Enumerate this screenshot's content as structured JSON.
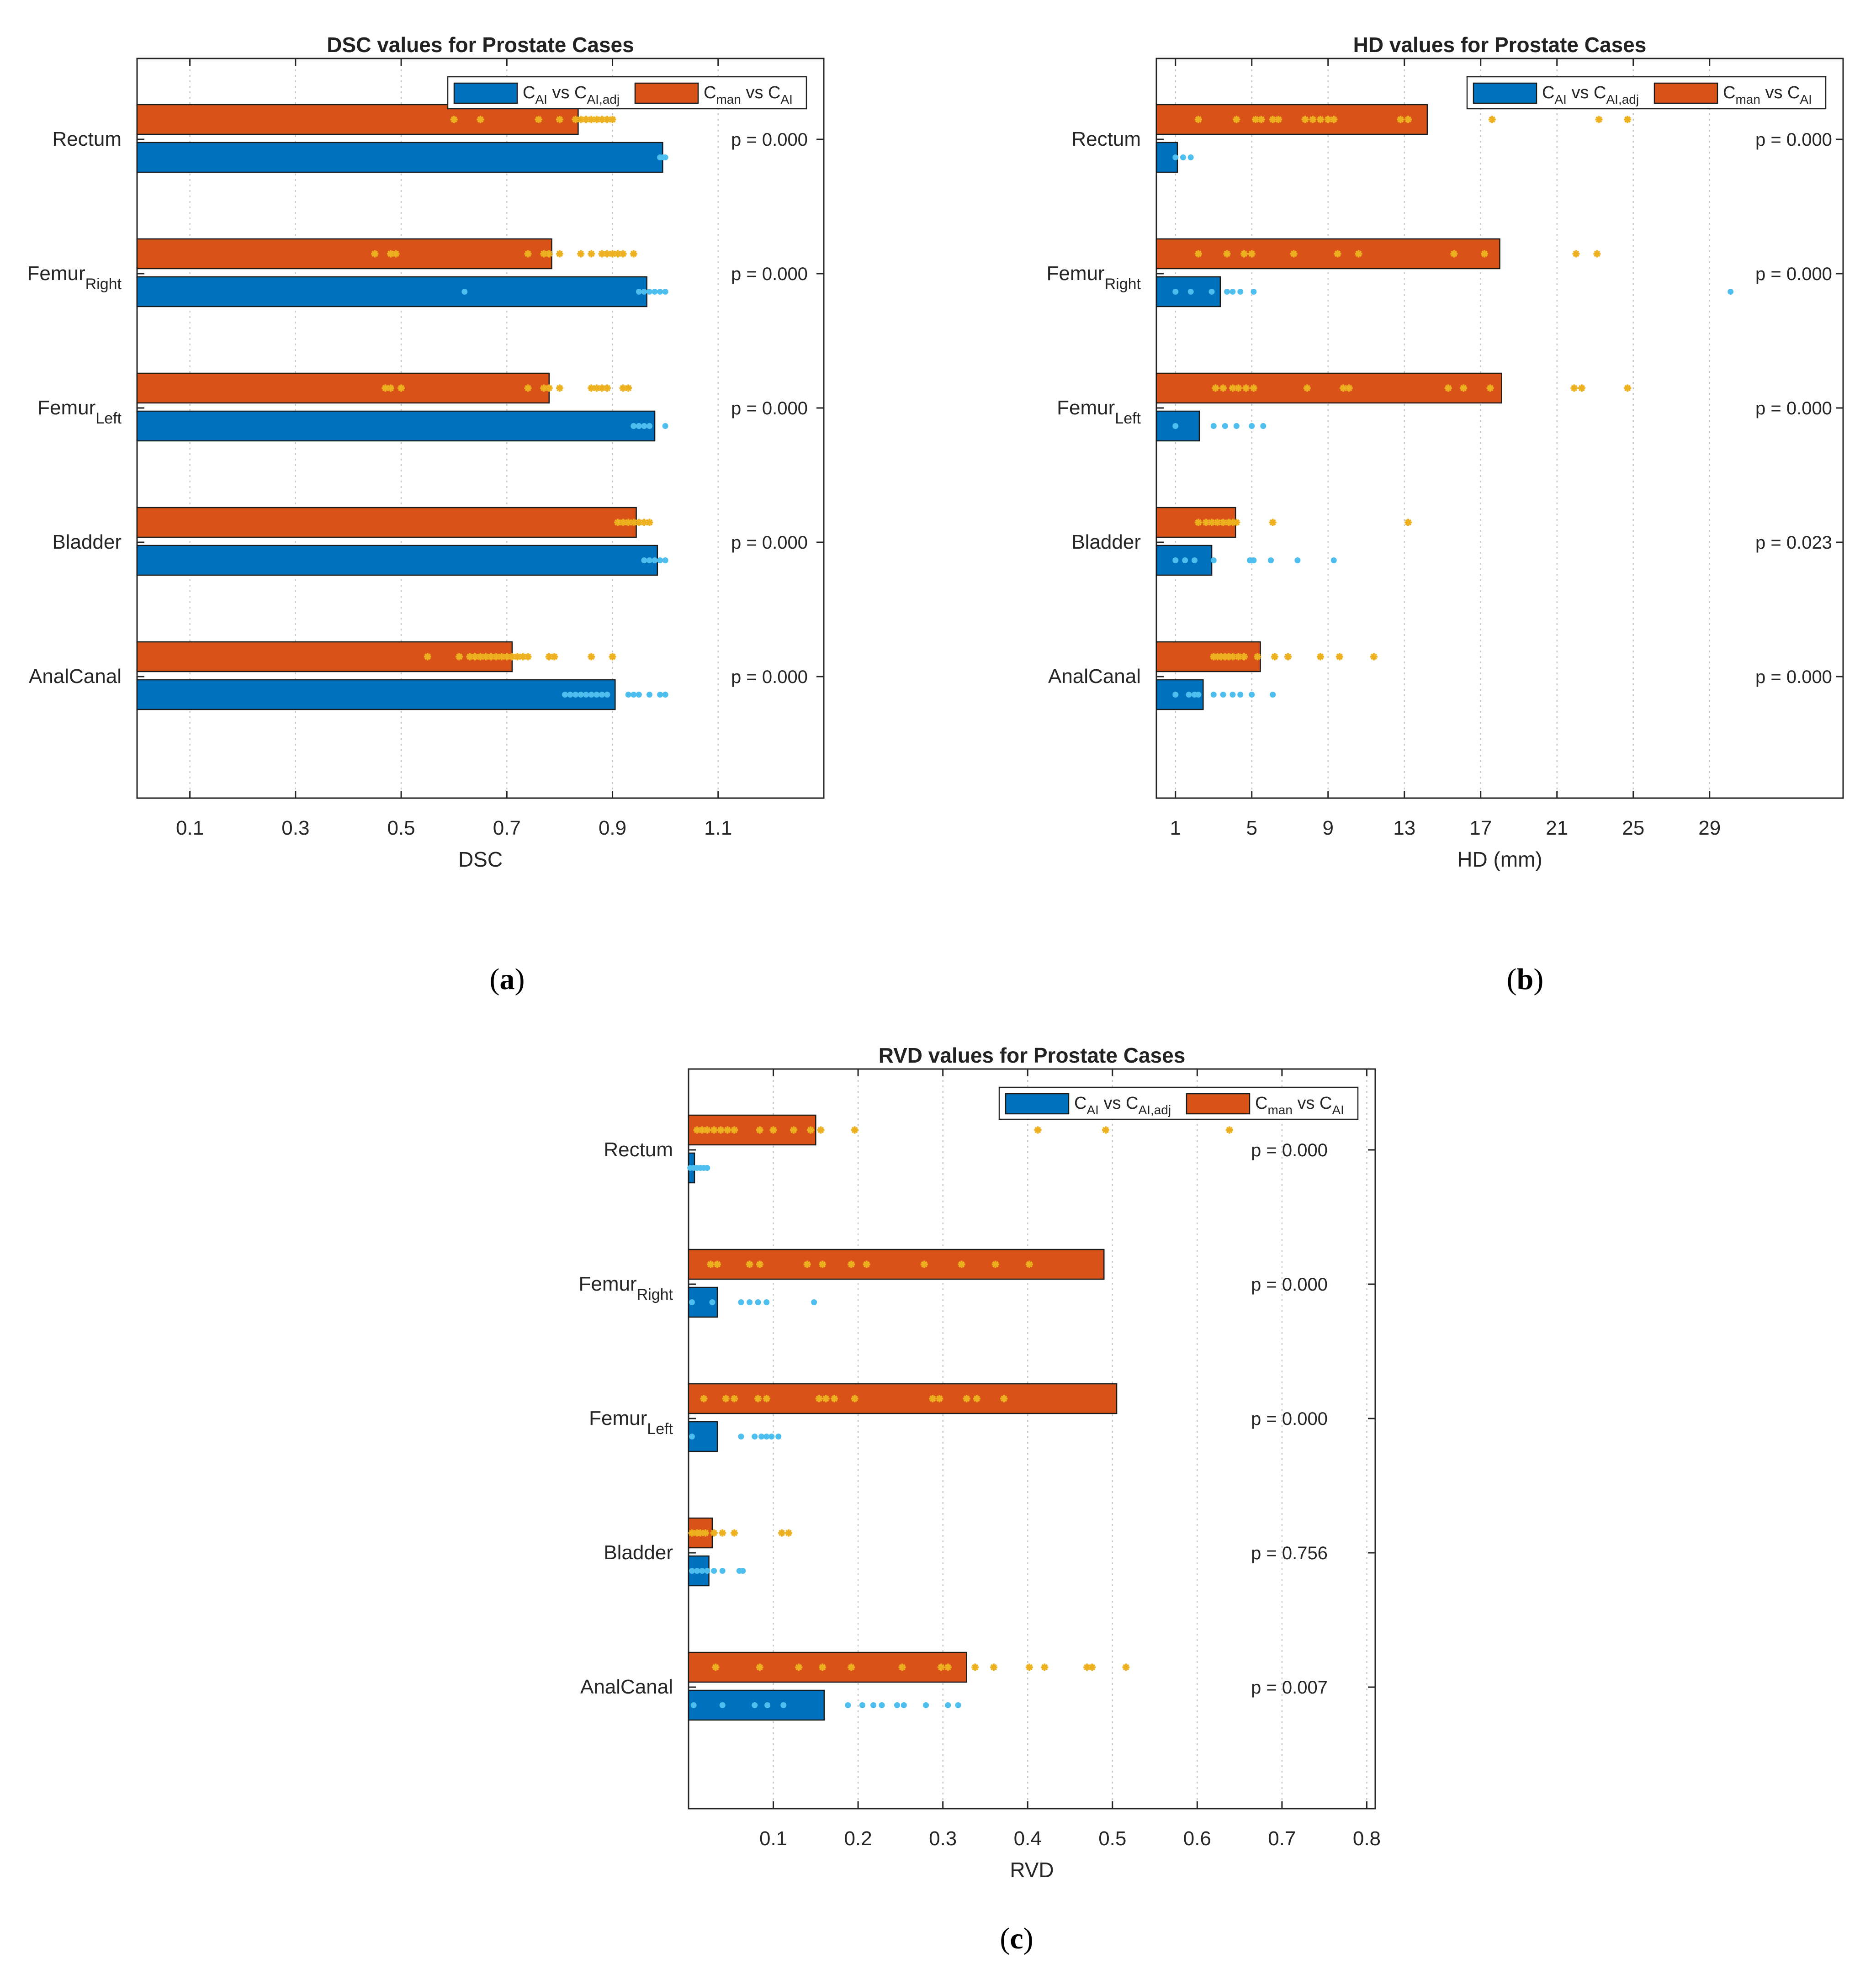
{
  "figure": {
    "panels": [
      "a",
      "b",
      "c"
    ]
  },
  "colors": {
    "blue_bar": "#0072BD",
    "orange_bar": "#D95319",
    "blue_dots": "#4DBEEE",
    "orange_stars": "#EDB120",
    "grid": "#c7c7c7",
    "axis": "#262626"
  },
  "chart_data": [
    {
      "type": "bar",
      "orientation": "horizontal",
      "title": "DSC values for Prostate Cases",
      "caption": "(a)",
      "xlabel": "DSC",
      "ylabel": "",
      "xlim": [
        0,
        1.3
      ],
      "xticks": [
        0.1,
        0.3,
        0.5,
        0.7,
        0.9,
        1.1
      ],
      "xtick_labels": [
        "0.1",
        "0.3",
        "0.5",
        "0.7",
        "0.9",
        "1.1"
      ],
      "grid": "x-dotted",
      "legend_position": "top-right",
      "categories": [
        "Rectum",
        "FemurRight",
        "FemurLeft",
        "Bladder",
        "AnalCanal"
      ],
      "category_labels": [
        {
          "main": "Rectum",
          "sub": ""
        },
        {
          "main": "Femur",
          "sub": "Right"
        },
        {
          "main": "Femur",
          "sub": "Left"
        },
        {
          "main": "Bladder",
          "sub": ""
        },
        {
          "main": "AnalCanal",
          "sub": ""
        }
      ],
      "series": [
        {
          "name": "CAI vs CAI,adj",
          "legend": {
            "a": "C",
            "a_sub": "AI",
            "mid": " vs C",
            "b_sub": "AI,adj"
          },
          "color": "#0072BD",
          "marker_color": "#4DBEEE",
          "marker": "dot",
          "values": [
            0.995,
            0.965,
            0.98,
            0.985,
            0.905
          ],
          "points": [
            [
              0.99,
              0.995,
              1.0
            ],
            [
              0.62,
              0.95,
              0.96,
              0.97,
              0.98,
              0.99,
              1.0
            ],
            [
              0.94,
              0.95,
              0.96,
              0.97,
              1.0
            ],
            [
              0.96,
              0.97,
              0.98,
              0.99,
              1.0
            ],
            [
              0.81,
              0.82,
              0.83,
              0.84,
              0.85,
              0.86,
              0.87,
              0.88,
              0.89,
              0.93,
              0.94,
              0.95,
              0.97,
              0.99,
              1.0
            ]
          ]
        },
        {
          "name": "Cman vs CAI",
          "legend": {
            "a": "C",
            "a_sub": "man",
            "mid": " vs C",
            "b_sub": "AI"
          },
          "color": "#D95319",
          "marker_color": "#EDB120",
          "marker": "star",
          "values": [
            0.835,
            0.785,
            0.78,
            0.945,
            0.71
          ],
          "points": [
            [
              0.6,
              0.65,
              0.76,
              0.8,
              0.83,
              0.84,
              0.85,
              0.86,
              0.87,
              0.88,
              0.89,
              0.9
            ],
            [
              0.45,
              0.48,
              0.49,
              0.74,
              0.77,
              0.78,
              0.8,
              0.84,
              0.86,
              0.88,
              0.89,
              0.9,
              0.91,
              0.92,
              0.94
            ],
            [
              0.47,
              0.48,
              0.5,
              0.74,
              0.77,
              0.78,
              0.8,
              0.86,
              0.87,
              0.88,
              0.89,
              0.92,
              0.93
            ],
            [
              0.91,
              0.92,
              0.93,
              0.94,
              0.95,
              0.96,
              0.97
            ],
            [
              0.55,
              0.61,
              0.63,
              0.64,
              0.65,
              0.66,
              0.67,
              0.68,
              0.69,
              0.7,
              0.71,
              0.72,
              0.73,
              0.74,
              0.78,
              0.79,
              0.86,
              0.9
            ]
          ]
        }
      ],
      "annotations": [
        "p = 0.000",
        "p = 0.000",
        "p = 0.000",
        "p = 0.000",
        "p = 0.000"
      ]
    },
    {
      "type": "bar",
      "orientation": "horizontal",
      "title": "HD values for Prostate Cases",
      "caption": "(b)",
      "xlabel": "HD (mm)",
      "ylabel": "",
      "xlim": [
        0,
        36
      ],
      "xticks": [
        1,
        5,
        9,
        13,
        17,
        21,
        25,
        29
      ],
      "xtick_labels": [
        "1",
        "5",
        "9",
        "13",
        "17",
        "21",
        "25",
        "29"
      ],
      "grid": "x-dotted",
      "legend_position": "top-right",
      "categories": [
        "Rectum",
        "FemurRight",
        "FemurLeft",
        "Bladder",
        "AnalCanal"
      ],
      "category_labels": [
        {
          "main": "Rectum",
          "sub": ""
        },
        {
          "main": "Femur",
          "sub": "Right"
        },
        {
          "main": "Femur",
          "sub": "Left"
        },
        {
          "main": "Bladder",
          "sub": ""
        },
        {
          "main": "AnalCanal",
          "sub": ""
        }
      ],
      "series": [
        {
          "name": "CAI vs CAI,adj",
          "legend": {
            "a": "C",
            "a_sub": "AI",
            "mid": " vs C",
            "b_sub": "AI,adj"
          },
          "color": "#0072BD",
          "marker_color": "#4DBEEE",
          "marker": "dot",
          "values": [
            1.1,
            3.35,
            2.25,
            2.9,
            2.45
          ],
          "points": [
            [
              1.0,
              1.4,
              1.8
            ],
            [
              1.0,
              1.8,
              2.9,
              3.7,
              4.0,
              4.4,
              5.1,
              30.1
            ],
            [
              1.0,
              3.0,
              3.6,
              4.2,
              5.0,
              5.6
            ],
            [
              1.0,
              1.5,
              2.0,
              3.0,
              4.9,
              5.1,
              6.0,
              7.4,
              9.3
            ],
            [
              1.0,
              1.7,
              2.0,
              2.2,
              3.0,
              3.5,
              4.0,
              4.4,
              5.0,
              6.1
            ]
          ]
        },
        {
          "name": "Cman vs CAI",
          "legend": {
            "a": "C",
            "a_sub": "man",
            "mid": " vs C",
            "b_sub": "AI"
          },
          "color": "#D95319",
          "marker_color": "#EDB120",
          "marker": "star",
          "values": [
            14.2,
            18.0,
            18.1,
            4.15,
            5.45
          ],
          "points": [
            [
              2.2,
              4.2,
              5.2,
              5.5,
              6.1,
              6.4,
              7.8,
              8.2,
              8.6,
              9.0,
              9.3,
              12.8,
              13.2,
              17.6,
              23.2,
              24.7
            ],
            [
              2.2,
              3.7,
              4.6,
              5.0,
              7.2,
              9.5,
              10.6,
              15.6,
              17.2,
              22.0,
              23.1
            ],
            [
              3.1,
              3.5,
              4.0,
              4.3,
              4.7,
              5.1,
              7.9,
              9.8,
              10.1,
              15.3,
              16.1,
              17.5,
              21.9,
              22.3,
              24.7
            ],
            [
              2.2,
              2.6,
              2.9,
              3.2,
              3.5,
              3.8,
              4.0,
              4.2,
              6.1,
              13.2
            ],
            [
              3.0,
              3.2,
              3.4,
              3.6,
              3.8,
              4.0,
              4.3,
              4.6,
              5.3,
              6.2,
              6.9,
              8.6,
              9.6,
              11.4
            ]
          ]
        }
      ],
      "annotations": [
        "p = 0.000",
        "p = 0.000",
        "p = 0.000",
        "p = 0.023",
        "p = 0.000"
      ]
    },
    {
      "type": "bar",
      "orientation": "horizontal",
      "title": "RVD values for Prostate Cases",
      "caption": "(c)",
      "xlabel": "RVD",
      "ylabel": "",
      "xlim": [
        0,
        0.81
      ],
      "xticks": [
        0.1,
        0.2,
        0.3,
        0.4,
        0.5,
        0.6,
        0.7,
        0.8
      ],
      "xtick_labels": [
        "0.1",
        "0.2",
        "0.3",
        "0.4",
        "0.5",
        "0.6",
        "0.7",
        "0.8"
      ],
      "grid": "x-dotted",
      "legend_position": "top-right",
      "categories": [
        "Rectum",
        "FemurRight",
        "FemurLeft",
        "Bladder",
        "AnalCanal"
      ],
      "category_labels": [
        {
          "main": "Rectum",
          "sub": ""
        },
        {
          "main": "Femur",
          "sub": "Right"
        },
        {
          "main": "Femur",
          "sub": "Left"
        },
        {
          "main": "Bladder",
          "sub": ""
        },
        {
          "main": "AnalCanal",
          "sub": ""
        }
      ],
      "series": [
        {
          "name": "CAI vs CAI,adj",
          "legend": {
            "a": "C",
            "a_sub": "AI",
            "mid": " vs C",
            "b_sub": "AI,adj"
          },
          "color": "#0072BD",
          "marker_color": "#4DBEEE",
          "marker": "dot",
          "values": [
            0.007,
            0.034,
            0.034,
            0.024,
            0.16
          ],
          "points": [
            [
              0.002,
              0.006,
              0.01,
              0.014,
              0.018,
              0.022
            ],
            [
              0.004,
              0.028,
              0.062,
              0.072,
              0.082,
              0.092,
              0.148
            ],
            [
              0.004,
              0.062,
              0.078,
              0.086,
              0.092,
              0.098,
              0.106
            ],
            [
              0.004,
              0.01,
              0.016,
              0.022,
              0.03,
              0.04,
              0.06,
              0.064
            ],
            [
              0.006,
              0.04,
              0.078,
              0.093,
              0.112,
              0.188,
              0.205,
              0.218,
              0.228,
              0.246,
              0.254,
              0.28,
              0.306,
              0.318
            ]
          ]
        },
        {
          "name": "Cman vs CAI",
          "legend": {
            "a": "C",
            "a_sub": "man",
            "mid": " vs C",
            "b_sub": "AI"
          },
          "color": "#D95319",
          "marker_color": "#EDB120",
          "marker": "star",
          "values": [
            0.15,
            0.49,
            0.505,
            0.028,
            0.328
          ],
          "points": [
            [
              0.01,
              0.016,
              0.022,
              0.03,
              0.038,
              0.046,
              0.054,
              0.084,
              0.1,
              0.124,
              0.144,
              0.156,
              0.196,
              0.412,
              0.492,
              0.638
            ],
            [
              0.026,
              0.034,
              0.072,
              0.084,
              0.14,
              0.158,
              0.192,
              0.21,
              0.278,
              0.322,
              0.362,
              0.402
            ],
            [
              0.018,
              0.044,
              0.054,
              0.082,
              0.092,
              0.154,
              0.162,
              0.172,
              0.196,
              0.288,
              0.296,
              0.328,
              0.34,
              0.372
            ],
            [
              0.004,
              0.01,
              0.014,
              0.02,
              0.03,
              0.04,
              0.054,
              0.11,
              0.118
            ],
            [
              0.032,
              0.084,
              0.13,
              0.158,
              0.192,
              0.252,
              0.298,
              0.306,
              0.338,
              0.36,
              0.402,
              0.42,
              0.47,
              0.476,
              0.516
            ]
          ]
        }
      ],
      "annotations": [
        "p = 0.000",
        "p = 0.000",
        "p = 0.000",
        "p = 0.756",
        "p = 0.007"
      ]
    }
  ]
}
